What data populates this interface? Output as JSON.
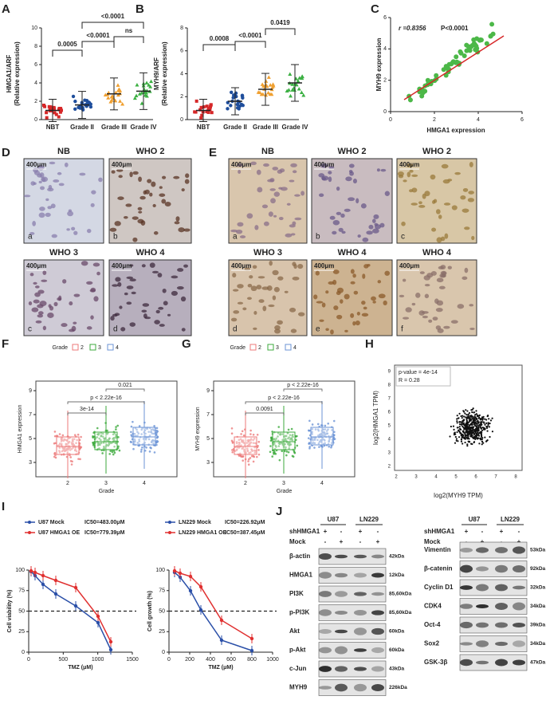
{
  "A": {
    "letter": "A",
    "y_label": [
      "HMGA1/ARF",
      "(Relative expression)"
    ],
    "yticks": [
      "0",
      "2",
      "4",
      "6",
      "8",
      "10"
    ],
    "categories": [
      "NBT",
      "Grade II",
      "Grade III",
      "Grade IV"
    ],
    "p_values": [
      "0.0005",
      "<0.0001",
      "<0.0001",
      "ns"
    ]
  },
  "B": {
    "letter": "B",
    "y_label": [
      "MYH9/ARF",
      "(Relative expression)"
    ],
    "yticks": [
      "0",
      "2",
      "4",
      "6",
      "8"
    ],
    "categories": [
      "NBT",
      "Grade II",
      "Grade III",
      "Grade IV"
    ],
    "p_values": [
      "0.0008",
      "<0.0001",
      "0.0419"
    ]
  },
  "C": {
    "letter": "C",
    "annotation": [
      "r =0.8356",
      "P<0.0001"
    ],
    "y_label": "MYH9 expression",
    "x_label": "HMGA1 expression",
    "yticks": [
      "0",
      "2",
      "4",
      "6"
    ],
    "xticks": [
      "0",
      "2",
      "4",
      "6"
    ]
  },
  "D": {
    "letter": "D",
    "images": [
      {
        "title": "NB",
        "scale": "400μm",
        "tag": "a"
      },
      {
        "title": "WHO 2",
        "scale": "400μm",
        "tag": "b"
      },
      {
        "title": "WHO 3",
        "scale": "400μm",
        "tag": "c"
      },
      {
        "title": "WHO 4",
        "scale": "400μm",
        "tag": "d"
      }
    ]
  },
  "E": {
    "letter": "E",
    "images": [
      {
        "title": "NB",
        "scale": "400μm",
        "tag": "a"
      },
      {
        "title": "WHO 2",
        "scale": "400μm",
        "tag": "b"
      },
      {
        "title": "WHO 2",
        "scale": "400μm",
        "tag": "c"
      },
      {
        "title": "WHO 3",
        "scale": "400μm",
        "tag": "d"
      },
      {
        "title": "WHO 4",
        "scale": "400μm",
        "tag": "e"
      },
      {
        "title": "WHO 4",
        "scale": "400μm",
        "tag": "f"
      }
    ]
  },
  "F": {
    "letter": "F",
    "legend_title": "Grade",
    "legend": [
      "2",
      "3",
      "4"
    ],
    "p_values": [
      "0.021",
      "p < 2.22e-16",
      "3e-14"
    ],
    "y_label": "HMGA1 expression",
    "yticks": [
      "3",
      "5",
      "7",
      "9"
    ],
    "categories": [
      "2",
      "3",
      "4"
    ],
    "x_label": "Grade"
  },
  "G": {
    "letter": "G",
    "legend_title": "Grade",
    "legend": [
      "2",
      "3",
      "4"
    ],
    "p_values": [
      "p < 2.22e-16",
      "p < 2.22e-16",
      "0.0091"
    ],
    "y_label": "MYH9 expression",
    "yticks": [
      "3",
      "5",
      "7",
      "9"
    ],
    "categories": [
      "2",
      "3",
      "4"
    ],
    "x_label": "Grade"
  },
  "H": {
    "letter": "H",
    "annotation": [
      "p-value = 4e-14",
      "R = 0.28"
    ],
    "y_label": "log2(HMGA1 TPM)",
    "x_label": "log2(MYH9 TPM)",
    "yticks": [
      "2",
      "3",
      "4",
      "5",
      "6",
      "7",
      "8",
      "9"
    ],
    "xticks": [
      "2",
      "3",
      "4",
      "5",
      "6",
      "7",
      "8"
    ]
  },
  "I": {
    "letter": "I",
    "plots": [
      {
        "legend": [
          {
            "name": "U87 Mock",
            "ic50": "IC50=483.00μM"
          },
          {
            "name": "U87 HMGA1 OE",
            "ic50": "IC50=779.39μM"
          }
        ],
        "y_label": "Cell viability (%)",
        "yticks": [
          "0",
          "25",
          "50",
          "75",
          "100"
        ],
        "xticks": [
          "0",
          "500",
          "1000",
          "1500"
        ],
        "x_label": "TMZ (μM)"
      },
      {
        "legend": [
          {
            "name": "LN229 Mock",
            "ic50": "IC50=226.92μM"
          },
          {
            "name": "LN229 HMGA1 OE",
            "ic50": "IC50=387.45μM"
          }
        ],
        "y_label": "Cell growth (%)",
        "yticks": [
          "0",
          "25",
          "50",
          "75",
          "100"
        ],
        "xticks": [
          "0",
          "200",
          "400",
          "600",
          "800",
          "1000"
        ],
        "x_label": "TMZ (μM)"
      }
    ]
  },
  "J": {
    "letter": "J",
    "blots": [
      {
        "cell_lines": [
          "U87",
          "LN229"
        ],
        "conditions": [
          {
            "label": "shHMGA1",
            "signs": [
              "+",
              "-",
              "+",
              "-"
            ]
          },
          {
            "label": "Mock",
            "signs": [
              "-",
              "+",
              "-",
              "+"
            ]
          }
        ],
        "rows": [
          {
            "protein": "β-actin",
            "size": "42kDa"
          },
          {
            "protein": "HMGA1",
            "size": "12kDa"
          },
          {
            "protein": "PI3K",
            "size": "85,60kDa"
          },
          {
            "protein": "p-PI3K",
            "size": "85,60kDa"
          },
          {
            "protein": "Akt",
            "size": "60kDa"
          },
          {
            "protein": "p-Akt",
            "size": "60kDa"
          },
          {
            "protein": "c-Jun",
            "size": "43kDa"
          },
          {
            "protein": "MYH9",
            "size": "226kDa"
          }
        ]
      },
      {
        "cell_lines": [
          "U87",
          "LN229"
        ],
        "conditions": [
          {
            "label": "shHMGA1",
            "signs": [
              "+",
              "-",
              "+",
              "-"
            ]
          },
          {
            "label": "Mock",
            "signs": [
              "-",
              "+",
              "-",
              "+"
            ]
          }
        ],
        "rows": [
          {
            "protein": "Vimentin",
            "size": "53kDa"
          },
          {
            "protein": "β-catenin",
            "size": "92kDa"
          },
          {
            "protein": "Cyclin D1",
            "size": "32kDa"
          },
          {
            "protein": "CDK4",
            "size": "34kDa"
          },
          {
            "protein": "Oct-4",
            "size": "39kDa"
          },
          {
            "protein": "Sox2",
            "size": "34kDa"
          },
          {
            "protein": "GSK-3β",
            "size": "47kDa"
          }
        ]
      }
    ]
  }
}
